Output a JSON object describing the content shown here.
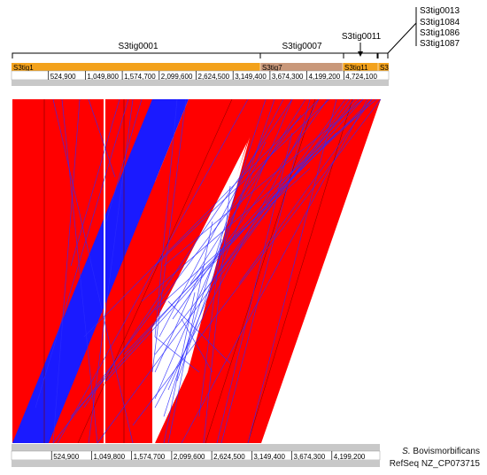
{
  "colors": {
    "forward": "#ff0000",
    "reverse": "#1a1aff",
    "contig_orange": "#f3a21c",
    "contig_tan": "#c9987a",
    "ruler": "#c8c8c8",
    "link": "#2a2aff"
  },
  "top_contig_labels": [
    {
      "name": "S3tig0001"
    },
    {
      "name": "S3tig0007"
    },
    {
      "name": "S3tig0011"
    }
  ],
  "stacked_labels": [
    "S3tig0013",
    "S3tig1084",
    "S3tig1086",
    "S3tig1087"
  ],
  "contig_bar_labels": [
    "S3tig1",
    "S3tig7",
    "S3tig11",
    "S3"
  ],
  "top_ticks": [
    "524,900",
    "1,049,800",
    "1,574,700",
    "2,099,600",
    "2,624,500",
    "3,149,400",
    "3,674,300",
    "4,199,200",
    "4,724,100"
  ],
  "bottom_ticks": [
    "524,900",
    "1,049,800",
    "1,574,700",
    "2,099,600",
    "2,624,500",
    "3,149,400",
    "3,674,300",
    "4,199,200"
  ],
  "reference": {
    "species_prefix": "S.",
    "species_name": "Bovismorbificans",
    "accession": "RefSeq NZ_CP073715"
  }
}
